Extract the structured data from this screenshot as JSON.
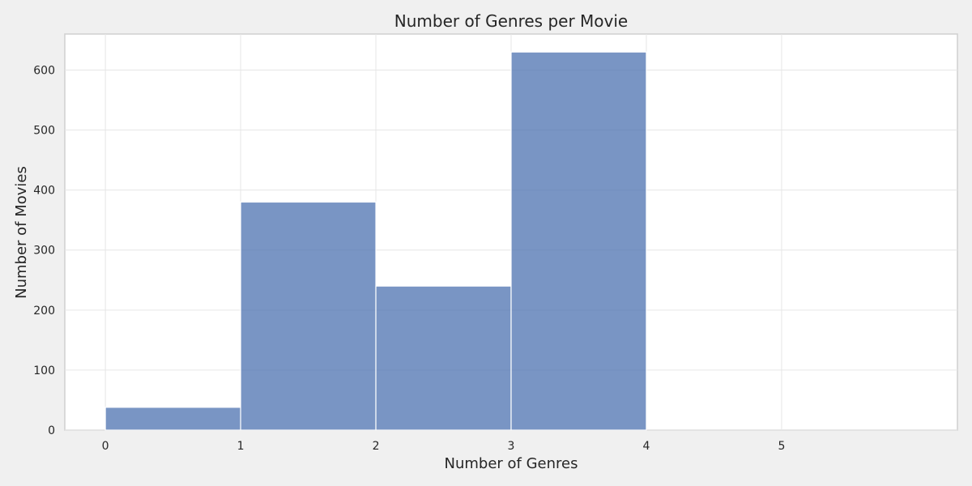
{
  "chart_data": {
    "type": "bar",
    "title": "Number of Genres per Movie",
    "xlabel": "Number of Genres",
    "ylabel": "Number of Movies",
    "bins": [
      {
        "x0": 0,
        "x1": 1,
        "value": 38
      },
      {
        "x0": 1,
        "x1": 2,
        "value": 380
      },
      {
        "x0": 2,
        "x1": 3,
        "value": 240
      },
      {
        "x0": 3,
        "x1": 4,
        "value": 630
      }
    ],
    "xticks": [
      0,
      1,
      2,
      3,
      4,
      5
    ],
    "yticks": [
      0,
      100,
      200,
      300,
      400,
      500,
      600
    ],
    "xlim": [
      -0.3,
      6.3
    ],
    "ylim": [
      0,
      660
    ],
    "grid": true,
    "bar_color": "#4c72b0"
  }
}
